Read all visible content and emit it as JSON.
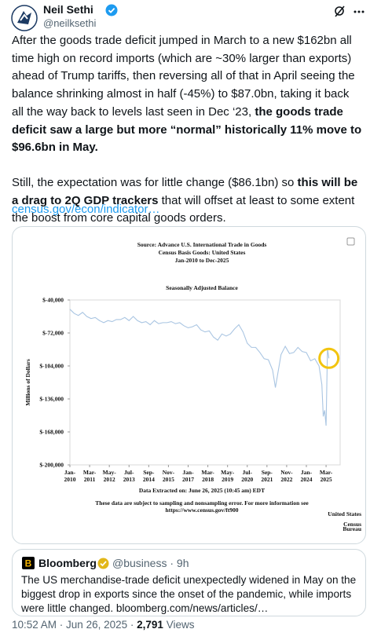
{
  "post": {
    "author": {
      "name": "Neil Sethi",
      "handle": "@neilksethi"
    },
    "paragraphs": [
      [
        {
          "text": "After the goods trade deficit jumped in March to a new $162bn all time high on record imports (which are ~30% larger than exports) ahead of Trump tariffs, then reversing all of that in April seeing the balance shrinking almost in half (-45%) to $87.0bn, taking it back all the way back to levels last seen in Dec ‘23, ",
          "bold": false
        },
        {
          "text": "the goods trade deficit saw a large but more “normal” historically 11% move to $96.6bn in May.",
          "bold": true
        }
      ],
      [
        {
          "text": "Still, the expectation was for little change ($86.1bn) so ",
          "bold": false
        },
        {
          "text": "this will be a drag to 2Q GDP trackers",
          "bold": true
        },
        {
          "text": " that will offset at least to some extent the boost from core capital goods orders.",
          "bold": false
        }
      ]
    ],
    "link": "census.gov/econ/indicator…",
    "timestamp": {
      "time": "10:52 AM",
      "date": "Jun 26, 2025",
      "views": "2,791",
      "views_label": "Views"
    }
  },
  "chart_data": {
    "type": "line",
    "title": "Source: Advance U.S. International Trade in Goods",
    "subtitle": [
      "Census Basis Goods: United States",
      "Jan-2010 to Dec-2025"
    ],
    "plot_title": "Seasonally Adjusted Balance",
    "y_label": "Millions of Dollars",
    "notes": [
      "Data Extracted on: June 26, 2025 (10:45 am) EDT",
      "These data are subject to sampling and nonsampling error. For more information see",
      "https://www.census.gov/ft900"
    ],
    "logo": {
      "top": "United States",
      "name": "Census",
      "bottom": "Bureau"
    },
    "x": [
      "2010-01",
      "2010-04",
      "2010-07",
      "2010-10",
      "2011-01",
      "2011-04",
      "2011-07",
      "2011-10",
      "2012-01",
      "2012-04",
      "2012-07",
      "2012-10",
      "2013-01",
      "2013-04",
      "2013-07",
      "2013-10",
      "2014-01",
      "2014-04",
      "2014-07",
      "2014-10",
      "2015-01",
      "2015-04",
      "2015-07",
      "2015-10",
      "2016-01",
      "2016-04",
      "2016-07",
      "2016-10",
      "2017-01",
      "2017-04",
      "2017-07",
      "2017-10",
      "2018-01",
      "2018-04",
      "2018-07",
      "2018-10",
      "2019-01",
      "2019-04",
      "2019-07",
      "2019-10",
      "2020-01",
      "2020-04",
      "2020-07",
      "2020-10",
      "2021-01",
      "2021-04",
      "2021-07",
      "2021-10",
      "2022-01",
      "2022-03",
      "2022-07",
      "2022-10",
      "2023-01",
      "2023-04",
      "2023-07",
      "2023-10",
      "2024-01",
      "2024-04",
      "2024-07",
      "2024-10",
      "2024-12",
      "2025-01",
      "2025-02",
      "2025-03",
      "2025-04",
      "2025-05"
    ],
    "series": [
      {
        "color": "#a9c5e2",
        "values": [
          -49000,
          -53000,
          -55000,
          -52000,
          -56000,
          -58000,
          -57000,
          -60000,
          -62000,
          -60000,
          -61000,
          -59000,
          -59000,
          -57000,
          -60000,
          -56000,
          -60000,
          -62000,
          -61000,
          -64000,
          -60000,
          -63000,
          -62000,
          -62000,
          -61000,
          -63000,
          -62000,
          -65000,
          -67000,
          -66000,
          -64000,
          -69000,
          -71000,
          -70000,
          -76000,
          -79000,
          -73000,
          -75000,
          -73000,
          -68000,
          -64000,
          -71000,
          -82000,
          -86000,
          -86000,
          -91000,
          -97000,
          -98000,
          -108000,
          -125000,
          -93000,
          -85000,
          -92000,
          -91000,
          -86000,
          -90000,
          -91000,
          -99000,
          -97000,
          -104000,
          -122000,
          -153000,
          -147000,
          -162000,
          -87000,
          -96600
        ]
      }
    ],
    "xlim": [
      "2010-01",
      "2026-01"
    ],
    "ylim": [
      -200000,
      -40000
    ],
    "yticks": [
      {
        "value": -40000,
        "label": "$-40,000"
      },
      {
        "value": -72000,
        "label": "$-72,000"
      },
      {
        "value": -104000,
        "label": "$-104,000"
      },
      {
        "value": -136000,
        "label": "$-136,000"
      },
      {
        "value": -168000,
        "label": "$-168,000"
      },
      {
        "value": -200000,
        "label": "$-200,000"
      }
    ],
    "xticks": [
      {
        "value": "2010-01",
        "label": "Jan-2010"
      },
      {
        "value": "2011-03",
        "label": "Mar-2011"
      },
      {
        "value": "2012-05",
        "label": "May-2012"
      },
      {
        "value": "2013-07",
        "label": "Jul-2013"
      },
      {
        "value": "2014-09",
        "label": "Sep-2014"
      },
      {
        "value": "2015-11",
        "label": "Nov-2015"
      },
      {
        "value": "2017-01",
        "label": "Jan-2017"
      },
      {
        "value": "2018-03",
        "label": "Mar-2018"
      },
      {
        "value": "2019-05",
        "label": "May-2019"
      },
      {
        "value": "2020-07",
        "label": "Jul-2020"
      },
      {
        "value": "2021-09",
        "label": "Sep-2021"
      },
      {
        "value": "2022-11",
        "label": "Nov-2022"
      },
      {
        "value": "2024-01",
        "label": "Jan-2024"
      },
      {
        "value": "2025-03",
        "label": "Mar-2025"
      }
    ],
    "highlight_color": "#f2c40f"
  },
  "quoted_post": {
    "author": "Bloomberg",
    "handle": "@business",
    "age": "9h",
    "text": "The US merchandise-trade deficit unexpectedly widened in May on the biggest drop in exports since the onset of the pandemic, while imports were little changed. bloomberg.com/news/articles/…"
  }
}
